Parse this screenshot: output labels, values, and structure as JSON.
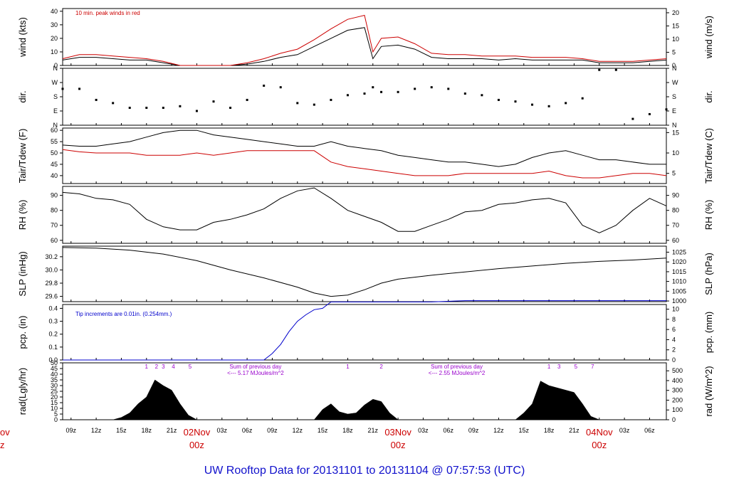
{
  "title": "UW Rooftop Data for 20131101  to  20131104 @ 07:57:53  (UTC)",
  "colors": {
    "black": "#000000",
    "red": "#cc0000",
    "blue": "#0000cc",
    "purple": "#9900cc",
    "title": "#1111cc"
  },
  "x_axis": {
    "hour_ticks": [
      "09z",
      "12z",
      "15z",
      "18z",
      "21z",
      "00z",
      "03z",
      "06z",
      "09z",
      "12z",
      "15z",
      "18z",
      "21z",
      "00z",
      "03z",
      "06z",
      "09z",
      "12z",
      "15z",
      "18z",
      "21z",
      "00z",
      "03z",
      "06z"
    ],
    "tick_hours_from_start": [
      9,
      12,
      15,
      18,
      21,
      24,
      27,
      30,
      33,
      36,
      39,
      42,
      45,
      48,
      51,
      54,
      57,
      60,
      63,
      66,
      69,
      72,
      75,
      78
    ],
    "day_labels": [
      {
        "name": "02Nov",
        "sub": "00z",
        "hour": 24
      },
      {
        "name": "03Nov",
        "sub": "00z",
        "hour": 48
      },
      {
        "name": "04Nov",
        "sub": "00z",
        "hour": 72
      }
    ],
    "partial_day_label": {
      "name": "ov",
      "sub": "z"
    },
    "range_hours": [
      8,
      80
    ]
  },
  "chart_data": [
    {
      "type": "line",
      "id": "wind",
      "ylabel": "wind (kts)",
      "ylabel_right": "wind (m/s)",
      "ylim": [
        0,
        42
      ],
      "yticks": [
        "0",
        "10",
        "20",
        "30",
        "40"
      ],
      "ytick_vals": [
        0,
        10,
        20,
        30,
        40
      ],
      "right_ylim": [
        0,
        21.6
      ],
      "right_yticks": [
        "0",
        "5",
        "10",
        "15",
        "20"
      ],
      "right_ytick_vals": [
        0,
        5,
        10,
        15,
        20
      ],
      "annotation": "10 min. peak winds in red",
      "series": [
        {
          "x": [
            8,
            10,
            12,
            14,
            16,
            18,
            20,
            22,
            24,
            26,
            28,
            30,
            32,
            34,
            36,
            38,
            40,
            42,
            44,
            45,
            46,
            48,
            50,
            52,
            54,
            56,
            58,
            60,
            62,
            64,
            66,
            68,
            70,
            72,
            74,
            76,
            78,
            80
          ],
          "values": [
            4,
            6,
            6,
            5,
            4,
            4,
            2,
            0,
            0,
            0,
            0,
            1,
            3,
            6,
            8,
            14,
            20,
            26,
            28,
            5,
            14,
            15,
            12,
            6,
            5,
            5,
            5,
            4,
            5,
            4,
            4,
            4,
            4,
            2,
            2,
            2,
            3,
            4
          ]
        },
        {
          "x": [
            8,
            10,
            12,
            14,
            16,
            18,
            20,
            22,
            24,
            26,
            28,
            30,
            32,
            34,
            36,
            38,
            40,
            42,
            44,
            45,
            46,
            48,
            50,
            52,
            54,
            56,
            58,
            60,
            62,
            64,
            66,
            68,
            70,
            72,
            74,
            76,
            78,
            80
          ],
          "values": [
            5,
            8,
            8,
            7,
            6,
            5,
            3,
            0,
            0,
            0,
            0,
            2,
            5,
            9,
            12,
            19,
            27,
            34,
            37,
            10,
            20,
            21,
            16,
            9,
            8,
            8,
            7,
            7,
            7,
            6,
            6,
            6,
            5,
            3,
            3,
            3,
            4,
            5
          ]
        }
      ]
    },
    {
      "type": "scatter",
      "id": "dir",
      "ylabel": "dir.",
      "ylabel_right": "dir.",
      "ylim": [
        0,
        360
      ],
      "yticks": [
        "N",
        "E",
        "S",
        "W",
        "N"
      ],
      "ytick_vals": [
        0,
        90,
        180,
        270,
        360
      ],
      "right_yticks": [
        "N",
        "E",
        "S",
        "W",
        "N"
      ],
      "x": [
        8,
        10,
        12,
        14,
        16,
        18,
        20,
        22,
        24,
        26,
        28,
        30,
        32,
        34,
        36,
        38,
        40,
        42,
        44,
        45,
        46,
        48,
        50,
        52,
        54,
        56,
        58,
        60,
        62,
        64,
        66,
        68,
        70,
        72,
        74,
        76,
        78,
        80
      ],
      "values": [
        230,
        230,
        160,
        140,
        110,
        110,
        110,
        120,
        90,
        150,
        110,
        160,
        250,
        240,
        140,
        130,
        160,
        190,
        200,
        240,
        210,
        210,
        230,
        240,
        230,
        200,
        190,
        160,
        150,
        130,
        120,
        140,
        170,
        350,
        350,
        40,
        70,
        100
      ]
    },
    {
      "type": "line",
      "id": "temp",
      "ylabel": "Tair/Tdew (F)",
      "ylabel_right": "Tair/Tdew (C)",
      "ylim": [
        36.5,
        61
      ],
      "yticks": [
        "40",
        "45",
        "50",
        "55",
        "60"
      ],
      "ytick_vals": [
        40,
        45,
        50,
        55,
        60
      ],
      "right_yticks": [
        "5",
        "10",
        "15"
      ],
      "right_ytick_vals": [
        41,
        50,
        59
      ],
      "series": [
        {
          "x": [
            8,
            10,
            12,
            14,
            16,
            18,
            20,
            22,
            24,
            26,
            28,
            30,
            32,
            34,
            36,
            38,
            40,
            42,
            44,
            46,
            48,
            50,
            52,
            54,
            56,
            58,
            60,
            62,
            64,
            66,
            68,
            70,
            72,
            74,
            76,
            78,
            80
          ],
          "values": [
            53.5,
            53,
            53,
            54,
            55,
            57,
            59,
            60,
            60,
            58,
            57,
            56,
            55,
            54,
            53,
            53,
            55,
            53,
            52,
            51,
            49,
            48,
            47,
            46,
            46,
            45,
            44,
            45,
            48,
            50,
            51,
            49,
            47,
            47,
            46,
            45,
            45
          ]
        },
        {
          "x": [
            8,
            10,
            12,
            14,
            16,
            18,
            20,
            22,
            24,
            26,
            28,
            30,
            32,
            34,
            36,
            38,
            40,
            42,
            44,
            46,
            48,
            50,
            52,
            54,
            56,
            58,
            60,
            62,
            64,
            66,
            68,
            70,
            72,
            74,
            76,
            78,
            80
          ],
          "values": [
            51.5,
            50.5,
            50,
            50,
            50,
            49,
            49,
            49,
            50,
            49,
            50,
            51,
            51,
            51,
            51,
            51,
            46,
            44,
            43,
            42,
            41,
            40,
            40,
            40,
            41,
            41,
            41,
            41,
            41,
            42,
            40,
            39,
            39,
            40,
            41,
            41,
            40
          ]
        }
      ]
    },
    {
      "type": "line",
      "id": "rh",
      "ylabel": "RH (%)",
      "ylabel_right": "RH (%)",
      "ylim": [
        58,
        96
      ],
      "yticks": [
        "60",
        "70",
        "80",
        "90"
      ],
      "ytick_vals": [
        60,
        70,
        80,
        90
      ],
      "right_yticks": [
        "60",
        "70",
        "80",
        "90"
      ],
      "series": [
        {
          "x": [
            8,
            10,
            12,
            14,
            16,
            18,
            20,
            22,
            24,
            26,
            28,
            30,
            32,
            34,
            36,
            38,
            40,
            42,
            44,
            46,
            48,
            50,
            52,
            54,
            56,
            58,
            60,
            62,
            64,
            66,
            68,
            70,
            72,
            74,
            76,
            78,
            80
          ],
          "values": [
            92,
            91,
            88,
            87,
            84,
            74,
            69,
            67,
            67,
            72,
            74,
            77,
            81,
            88,
            93,
            95,
            88,
            80,
            76,
            72,
            66,
            66,
            70,
            74,
            79,
            80,
            84,
            85,
            87,
            88,
            85,
            70,
            65,
            70,
            80,
            88,
            83
          ]
        }
      ]
    },
    {
      "type": "line",
      "id": "slp",
      "ylabel": "SLP (inHg)",
      "ylabel_right": "SLP (hPa)",
      "ylim": [
        29.52,
        30.36
      ],
      "yticks": [
        "29.6",
        "29.8",
        "30.0",
        "30.2"
      ],
      "ytick_vals": [
        29.6,
        29.8,
        30.0,
        30.2
      ],
      "right_yticks": [
        "1000",
        "1005",
        "1010",
        "1015",
        "1020",
        "1025"
      ],
      "right_ytick_vals": [
        29.53,
        29.678,
        29.826,
        29.973,
        30.121,
        30.269
      ],
      "series": [
        {
          "x": [
            8,
            12,
            16,
            20,
            24,
            28,
            32,
            36,
            38,
            40,
            42,
            44,
            46,
            48,
            52,
            56,
            60,
            64,
            68,
            72,
            76,
            80
          ],
          "values": [
            30.34,
            30.33,
            30.3,
            30.24,
            30.14,
            30.0,
            29.88,
            29.74,
            29.65,
            29.6,
            29.62,
            29.7,
            29.8,
            29.86,
            29.92,
            29.97,
            30.02,
            30.06,
            30.1,
            30.13,
            30.15,
            30.18
          ]
        }
      ]
    },
    {
      "type": "line",
      "id": "pcp",
      "ylabel": "pcp. (in)",
      "ylabel_right": "pcp. (mm)",
      "ylim": [
        0,
        0.43
      ],
      "yticks": [
        "0.0",
        "0.1",
        "0.2",
        "0.3",
        "0.4"
      ],
      "ytick_vals": [
        0,
        0.1,
        0.2,
        0.3,
        0.4
      ],
      "right_yticks": [
        "0",
        "2",
        "4",
        "6",
        "8",
        "10"
      ],
      "right_ytick_vals": [
        0,
        0.0787,
        0.1575,
        0.2362,
        0.315,
        0.3937
      ],
      "annotation": "Tip increments are 0.01in. (0.254mm.)",
      "series": [
        {
          "x": [
            8,
            32,
            33,
            34,
            35,
            36,
            37,
            38,
            39,
            40,
            52,
            56,
            80
          ],
          "values": [
            0,
            0,
            0.05,
            0.12,
            0.22,
            0.3,
            0.35,
            0.39,
            0.4,
            0.45,
            0.45,
            0.46,
            0.46
          ]
        }
      ]
    },
    {
      "type": "area",
      "id": "rad",
      "ylabel": "rad(Lgly/hr)",
      "ylabel_right": "rad (W/m^2)",
      "ylim": [
        0,
        50
      ],
      "yticks": [
        "0",
        "5",
        "10",
        "15",
        "20",
        "25",
        "30",
        "35",
        "40",
        "45",
        "50"
      ],
      "ytick_vals": [
        0,
        5,
        10,
        15,
        20,
        25,
        30,
        35,
        40,
        45,
        50
      ],
      "right_yticks": [
        "0",
        "100",
        "200",
        "300",
        "400",
        "500"
      ],
      "right_ytick_vals": [
        0,
        8.6,
        17.2,
        25.8,
        34.4,
        43
      ],
      "x": [
        14,
        15,
        16,
        17,
        18,
        19,
        20,
        21,
        22,
        23,
        24,
        38,
        39,
        40,
        41,
        42,
        43,
        44,
        45,
        46,
        47,
        48,
        62,
        63,
        64,
        65,
        66,
        67,
        68,
        69,
        70,
        71,
        72
      ],
      "values": [
        0,
        2,
        6,
        14,
        20,
        35,
        30,
        26,
        14,
        4,
        0,
        0,
        9,
        14,
        7,
        5,
        6,
        13,
        18,
        16,
        6,
        0,
        0,
        6,
        14,
        34,
        30,
        28,
        26,
        24,
        14,
        3,
        0
      ],
      "hour_markers": [
        {
          "label": "1",
          "h": 18
        },
        {
          "label": "2",
          "h": 19.2
        },
        {
          "label": "3",
          "h": 20
        },
        {
          "label": "4",
          "h": 21.2
        },
        {
          "label": "5",
          "h": 23.2
        },
        {
          "label": "1",
          "h": 42
        },
        {
          "label": "2",
          "h": 46
        },
        {
          "label": "1",
          "h": 66
        },
        {
          "label": "3",
          "h": 67.2
        },
        {
          "label": "5",
          "h": 69.2
        },
        {
          "label": "7",
          "h": 71.2
        }
      ],
      "daily_sums": [
        {
          "line1": "Sum of previous day",
          "line2": "<--- 5.17 MJoules/m^2",
          "h": 31
        },
        {
          "line1": "Sum of previous day",
          "line2": "<--- 2.55 MJoules/m^2",
          "h": 55
        }
      ]
    }
  ]
}
